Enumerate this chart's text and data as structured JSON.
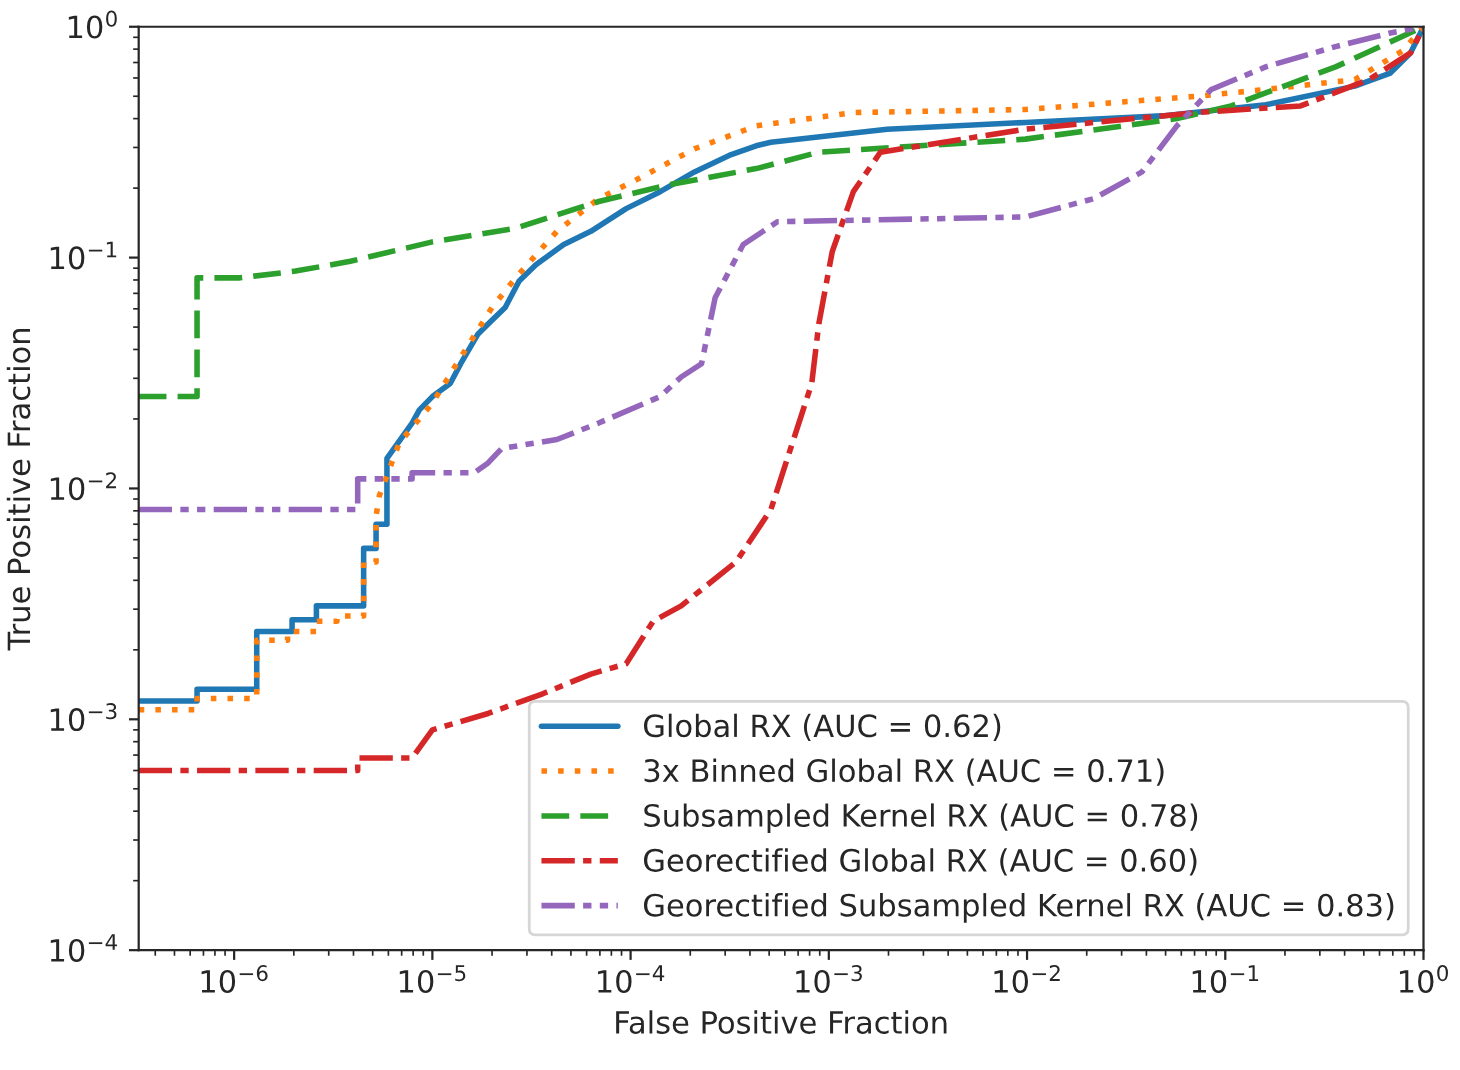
{
  "chart_data": {
    "type": "line",
    "xlabel": "False Positive Fraction",
    "ylabel": "True Positive Fraction",
    "log": "xy",
    "xlim": [
      3.3e-07,
      1
    ],
    "ylim": [
      0.0001,
      1
    ],
    "xticks": [
      {
        "value": 1e-06,
        "label": "10$^{−6}$"
      },
      {
        "value": 1e-05,
        "label": "10$^{−5}$"
      },
      {
        "value": 0.0001,
        "label": "10$^{−4}$"
      },
      {
        "value": 0.001,
        "label": "10$^{−3}$"
      },
      {
        "value": 0.01,
        "label": "10$^{−2}$"
      },
      {
        "value": 0.1,
        "label": "10$^{−1}$"
      },
      {
        "value": 1,
        "label": "10$^{0}$"
      }
    ],
    "yticks": [
      {
        "value": 0.0001,
        "label": "10$^{−4}$"
      },
      {
        "value": 0.001,
        "label": "10$^{−3}$"
      },
      {
        "value": 0.01,
        "label": "10$^{−2}$"
      },
      {
        "value": 0.1,
        "label": "10$^{−1}$"
      },
      {
        "value": 1,
        "label": "10$^{0}$"
      }
    ],
    "grid": false,
    "legend": "bottom right",
    "marker": "none",
    "series": [
      {
        "name": "Global RX (AUC = 0.62)",
        "color": "#1f77b4",
        "line_style": "solid",
        "x": [
          3.3e-07,
          6.5e-07,
          6.5e-07,
          1.3e-06,
          1.3e-06,
          1.96e-06,
          1.96e-06,
          2.6e-06,
          2.6e-06,
          4.5e-06,
          4.5e-06,
          5.2e-06,
          5.2e-06,
          5.9e-06,
          5.9e-06,
          7.9e-06,
          8.6e-06,
          1e-05,
          1.23e-05,
          1.39e-05,
          1.7e-05,
          1.91e-05,
          2.33e-05,
          2.74e-05,
          3.34e-05,
          4.6e-05,
          6.3e-05,
          9.5e-05,
          0.000141,
          0.00021,
          0.000314,
          0.00043,
          0.00051,
          0.00197,
          0.0098,
          0.048,
          0.16,
          0.45,
          0.68,
          0.86,
          1
        ],
        "values": [
          0.0012,
          0.0012,
          0.00135,
          0.00135,
          0.0024,
          0.0024,
          0.0027,
          0.0027,
          0.0031,
          0.0031,
          0.0055,
          0.0055,
          0.007,
          0.007,
          0.0135,
          0.0192,
          0.0219,
          0.025,
          0.0285,
          0.0347,
          0.0467,
          0.0516,
          0.0608,
          0.0792,
          0.0933,
          0.114,
          0.13,
          0.163,
          0.193,
          0.235,
          0.277,
          0.305,
          0.316,
          0.36,
          0.385,
          0.411,
          0.459,
          0.553,
          0.63,
          0.77,
          1
        ]
      },
      {
        "name": "3x Binned Global RX (AUC = 0.71)",
        "color": "#ff7f0e",
        "line_style": "dotted",
        "x": [
          3.3e-07,
          6.5e-07,
          6.5e-07,
          1.3e-06,
          1.3e-06,
          1.86e-06,
          1.86e-06,
          2.6e-06,
          2.6e-06,
          3.3e-06,
          3.3e-06,
          4.5e-06,
          4.5e-06,
          5.2e-06,
          5.2e-06,
          5.4e-06,
          6.8e-06,
          1e-05,
          1.39e-05,
          2e-05,
          2.63e-05,
          4.25e-05,
          6.9e-05,
          0.00011,
          0.00021,
          0.00043,
          0.00133,
          0.0098,
          0.072,
          0.16,
          0.45,
          0.79,
          1
        ],
        "values": [
          0.0011,
          0.0011,
          0.00123,
          0.00123,
          0.0022,
          0.0022,
          0.0024,
          0.0024,
          0.00266,
          0.00266,
          0.0028,
          0.0028,
          0.0048,
          0.0048,
          0.0076,
          0.0093,
          0.0157,
          0.0234,
          0.037,
          0.0608,
          0.0817,
          0.13,
          0.18,
          0.22,
          0.296,
          0.372,
          0.425,
          0.438,
          0.5,
          0.535,
          0.59,
          0.79,
          1
        ]
      },
      {
        "name": "Subsampled Kernel RX (AUC = 0.78)",
        "color": "#2ca02c",
        "line_style": "dashed",
        "x": [
          3.3e-07,
          6.5e-07,
          6.5e-07,
          1.07e-06,
          2.04e-06,
          3.86e-06,
          1e-05,
          2.63e-05,
          6.9e-05,
          0.000153,
          0.00043,
          0.00089,
          0.0098,
          0.057,
          0.107,
          0.36,
          1
        ],
        "values": [
          0.025,
          0.025,
          0.0817,
          0.0817,
          0.0874,
          0.0964,
          0.117,
          0.134,
          0.175,
          0.206,
          0.243,
          0.286,
          0.326,
          0.4,
          0.454,
          0.67,
          1
        ]
      },
      {
        "name": "Georectified Global RX (AUC = 0.60)",
        "color": "#d62728",
        "line_style": "dashdot",
        "x": [
          3.3e-07,
          4.2e-06,
          4.2e-06,
          7.9e-06,
          1e-05,
          1.91e-05,
          3.6e-05,
          6.3e-05,
          9.5e-05,
          0.00013,
          0.00018,
          0.00034,
          0.00051,
          0.00064,
          0.00082,
          0.00089,
          0.00104,
          0.00133,
          0.00182,
          0.0098,
          0.072,
          0.24,
          0.53,
          0.86,
          1
        ],
        "values": [
          0.0006,
          0.0006,
          0.00068,
          0.00068,
          0.0009,
          0.00106,
          0.00129,
          0.00157,
          0.00174,
          0.00266,
          0.0031,
          0.0048,
          0.0081,
          0.0148,
          0.0285,
          0.0516,
          0.106,
          0.193,
          0.286,
          0.36,
          0.425,
          0.454,
          0.59,
          0.77,
          1
        ]
      },
      {
        "name": "Georectified Subsampled Kernel RX (AUC = 0.83)",
        "color": "#9467bd",
        "line_style": "dashdotdot",
        "x": [
          3.3e-07,
          4.2e-06,
          4.2e-06,
          7.9e-06,
          7.9e-06,
          1.63e-05,
          1.91e-05,
          2.24e-05,
          4.25e-05,
          6.9e-05,
          0.000141,
          0.00018,
          0.000228,
          0.000267,
          0.00037,
          0.00055,
          0.0098,
          0.0217,
          0.038,
          0.057,
          0.085,
          0.16,
          0.36,
          0.68,
          1
        ],
        "values": [
          0.0081,
          0.0081,
          0.011,
          0.011,
          0.0117,
          0.0117,
          0.0129,
          0.0149,
          0.0163,
          0.0192,
          0.025,
          0.0304,
          0.0347,
          0.067,
          0.114,
          0.143,
          0.15,
          0.18,
          0.235,
          0.372,
          0.535,
          0.67,
          0.82,
          0.94,
          1
        ]
      }
    ]
  }
}
